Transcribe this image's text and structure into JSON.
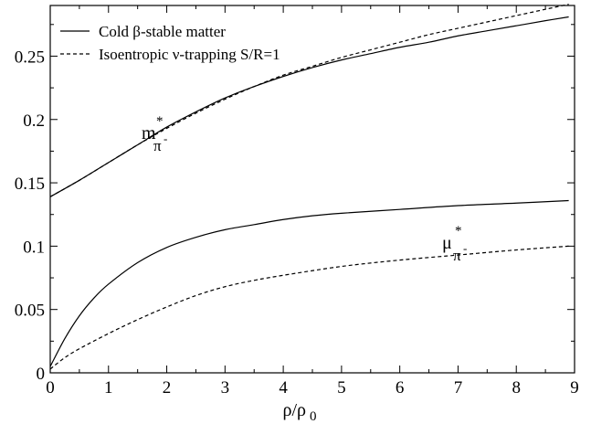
{
  "chart_data": {
    "type": "line",
    "title": "",
    "xlabel_base": "ρ/ρ",
    "xlabel_sub": "0",
    "ylabel": "",
    "xlim": [
      0,
      9
    ],
    "ylim": [
      0,
      0.29
    ],
    "x_ticks": [
      0,
      1,
      2,
      3,
      4,
      5,
      6,
      7,
      8,
      9
    ],
    "y_ticks": [
      0,
      0.05,
      0.1,
      0.15,
      0.2,
      0.25
    ],
    "y_tick_labels": [
      "0",
      "0.05",
      "0.1",
      "0.15",
      "0.2",
      "0.25"
    ],
    "grid": false,
    "legend_position": "top-left",
    "legend": [
      {
        "label": "Cold β-stable matter",
        "style": "solid"
      },
      {
        "label": "Isoentropic ν-trapping S/R=1",
        "style": "dashed"
      }
    ],
    "annotations": [
      {
        "base": "m",
        "sup": "*",
        "sub": "π",
        "subsup": "-"
      },
      {
        "base": "μ",
        "sup": "*",
        "sub": "π",
        "subsup": "-"
      }
    ],
    "series": [
      {
        "legend_index": 0,
        "style": "solid",
        "x": [
          0,
          0.5,
          1,
          1.5,
          2,
          2.5,
          3,
          3.5,
          4,
          4.5,
          5,
          5.5,
          6,
          6.5,
          7,
          7.5,
          8,
          8.5,
          8.9
        ],
        "y": [
          0.139,
          0.152,
          0.166,
          0.18,
          0.194,
          0.206,
          0.217,
          0.226,
          0.234,
          0.241,
          0.247,
          0.252,
          0.257,
          0.261,
          0.266,
          0.27,
          0.274,
          0.278,
          0.281
        ]
      },
      {
        "legend_index": 1,
        "style": "dashed",
        "x": [
          0,
          0.5,
          1,
          1.5,
          2,
          2.5,
          3,
          3.5,
          4,
          4.5,
          5,
          5.5,
          6,
          6.5,
          7,
          7.5,
          8,
          8.5,
          8.9
        ],
        "y": [
          0.139,
          0.152,
          0.166,
          0.18,
          0.193,
          0.205,
          0.216,
          0.226,
          0.235,
          0.242,
          0.249,
          0.255,
          0.261,
          0.267,
          0.272,
          0.277,
          0.282,
          0.287,
          0.291
        ]
      },
      {
        "legend_index": 0,
        "style": "solid",
        "x": [
          0,
          0.25,
          0.5,
          0.75,
          1,
          1.5,
          2,
          2.5,
          3,
          3.5,
          4,
          4.5,
          5,
          6,
          7,
          8,
          8.9
        ],
        "y": [
          0.005,
          0.027,
          0.045,
          0.059,
          0.07,
          0.087,
          0.099,
          0.107,
          0.113,
          0.117,
          0.121,
          0.124,
          0.126,
          0.129,
          0.132,
          0.134,
          0.136
        ]
      },
      {
        "legend_index": 1,
        "style": "dashed",
        "x": [
          0,
          0.25,
          0.5,
          1,
          1.5,
          2,
          2.5,
          3,
          3.5,
          4,
          5,
          6,
          7,
          8,
          8.9
        ],
        "y": [
          0.003,
          0.012,
          0.019,
          0.031,
          0.042,
          0.052,
          0.061,
          0.068,
          0.073,
          0.077,
          0.084,
          0.089,
          0.093,
          0.097,
          0.1
        ]
      }
    ]
  }
}
